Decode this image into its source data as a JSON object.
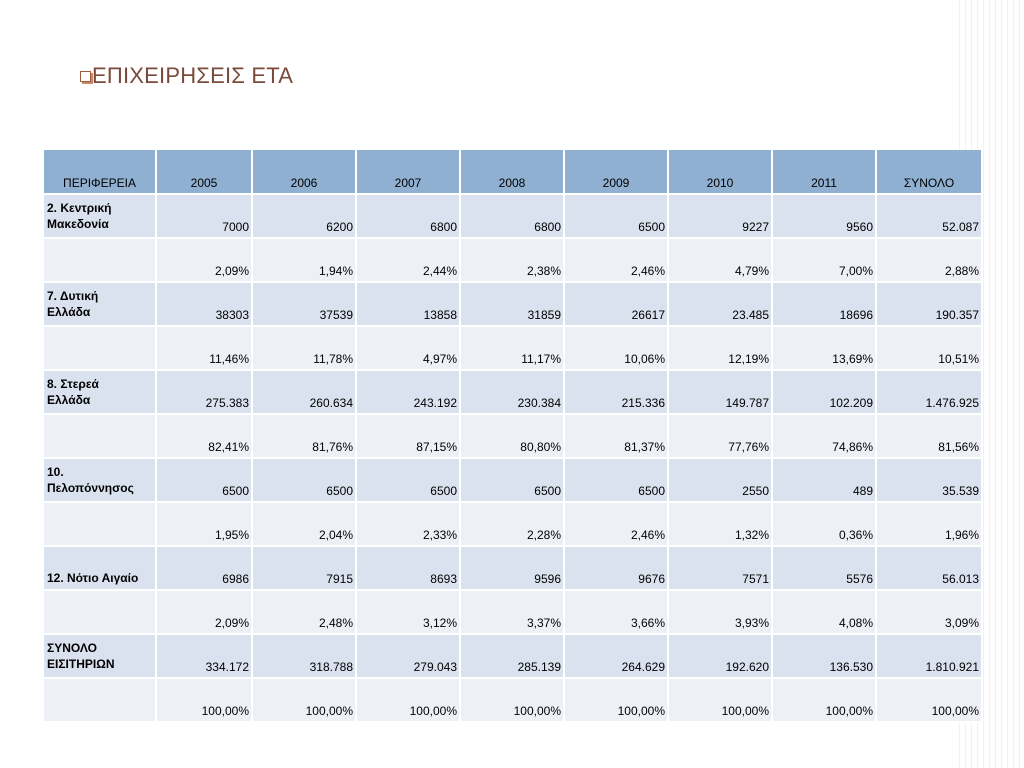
{
  "title": "ΕΠΙΧΕΙΡΗΣΕΙΣ ΕΤΑ",
  "bullet_icon": "hollow-square-bullet-icon",
  "colors": {
    "title": "#7b4a3a",
    "header_bg": "#8fb0d1",
    "row_odd_bg": "#d9e2ee",
    "row_even_bg": "#edf1f7"
  },
  "table": {
    "headers": [
      "ΠΕΡΙΦΕΡΕΙΑ",
      "2005",
      "2006",
      "2007",
      "2008",
      "2009",
      "2010",
      "2011",
      "ΣΥΝΟΛΟ"
    ],
    "rows": [
      {
        "region_lines": [
          "2. Κεντρική",
          "Μακεδονία"
        ],
        "values": [
          "7000",
          "6200",
          "6800",
          "6800",
          "6500",
          "9227",
          "9560",
          "52.087"
        ]
      },
      {
        "region_lines": [],
        "values": [
          "2,09%",
          "1,94%",
          "2,44%",
          "2,38%",
          "2,46%",
          "4,79%",
          "7,00%",
          "2,88%"
        ]
      },
      {
        "region_lines": [
          "7. Δυτική",
          "Ελλάδα"
        ],
        "values": [
          "38303",
          "37539",
          "13858",
          "31859",
          "26617",
          "23.485",
          "18696",
          "190.357"
        ]
      },
      {
        "region_lines": [],
        "values": [
          "11,46%",
          "11,78%",
          "4,97%",
          "11,17%",
          "10,06%",
          "12,19%",
          "13,69%",
          "10,51%"
        ]
      },
      {
        "region_lines": [
          "8. Στερεά",
          "Ελλάδα"
        ],
        "values": [
          "275.383",
          "260.634",
          "243.192",
          "230.384",
          "215.336",
          "149.787",
          "102.209",
          "1.476.925"
        ]
      },
      {
        "region_lines": [],
        "values": [
          "82,41%",
          "81,76%",
          "87,15%",
          "80,80%",
          "81,37%",
          "77,76%",
          "74,86%",
          "81,56%"
        ]
      },
      {
        "region_lines": [
          "10.",
          "Πελοπόννησος"
        ],
        "values": [
          "6500",
          "6500",
          "6500",
          "6500",
          "6500",
          "2550",
          "489",
          "35.539"
        ]
      },
      {
        "region_lines": [],
        "values": [
          "1,95%",
          "2,04%",
          "2,33%",
          "2,28%",
          "2,46%",
          "1,32%",
          "0,36%",
          "1,96%"
        ]
      },
      {
        "region_lines": [
          "12. Νότιο Αιγαίο"
        ],
        "values": [
          "6986",
          "7915",
          "8693",
          "9596",
          "9676",
          "7571",
          "5576",
          "56.013"
        ]
      },
      {
        "region_lines": [],
        "values": [
          "2,09%",
          "2,48%",
          "3,12%",
          "3,37%",
          "3,66%",
          "3,93%",
          "4,08%",
          "3,09%"
        ]
      },
      {
        "region_lines": [
          "ΣΥΝΟΛΟ",
          "ΕΙΣΙΤΗΡΙΩΝ"
        ],
        "values": [
          "334.172",
          "318.788",
          "279.043",
          "285.139",
          "264.629",
          "192.620",
          "136.530",
          "1.810.921"
        ]
      },
      {
        "region_lines": [],
        "values": [
          "100,00%",
          "100,00%",
          "100,00%",
          "100,00%",
          "100,00%",
          "100,00%",
          "100,00%",
          "100,00%"
        ]
      }
    ]
  }
}
